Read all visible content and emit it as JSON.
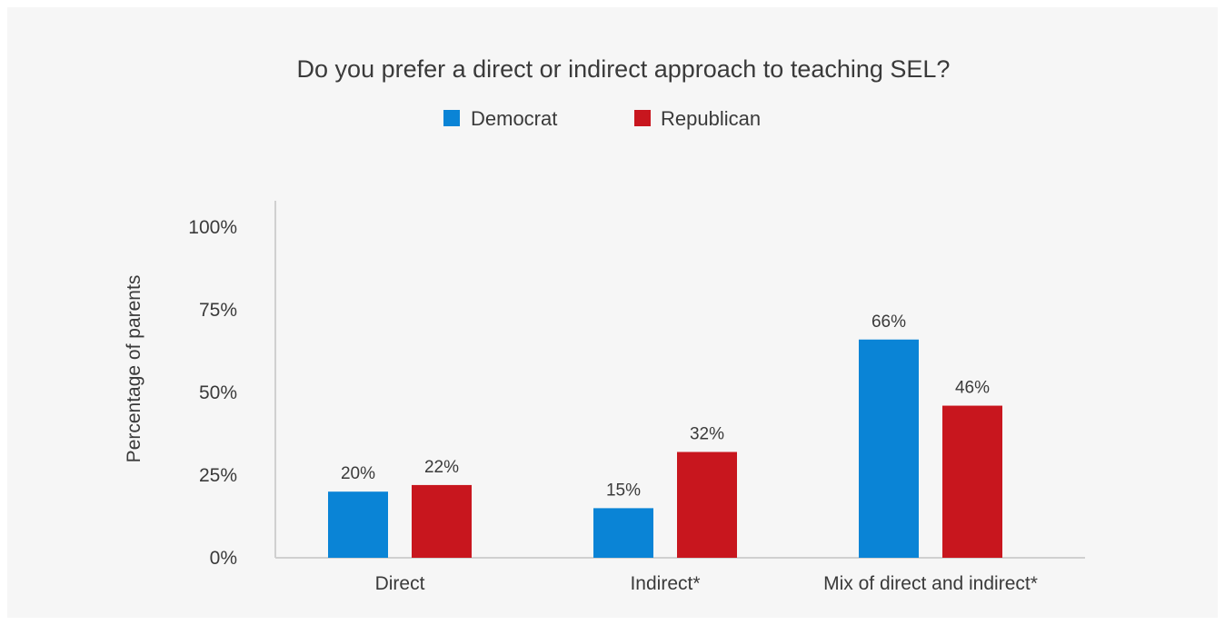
{
  "chart_data": {
    "type": "bar",
    "title": "Do you prefer a direct or indirect approach to teaching SEL?",
    "xlabel": "",
    "ylabel": "Percentage of parents",
    "categories": [
      "Direct",
      "Indirect*",
      "Mix of direct and indirect*"
    ],
    "series": [
      {
        "name": "Democrat",
        "color": "#0a84d6",
        "values": [
          20,
          15,
          66
        ],
        "labels": [
          "20%",
          "15%",
          "66%"
        ]
      },
      {
        "name": "Republican",
        "color": "#c8161e",
        "values": [
          22,
          32,
          46
        ],
        "labels": [
          "22%",
          "32%",
          "46%"
        ]
      }
    ],
    "ylim": [
      0,
      100
    ],
    "yticks": [
      0,
      25,
      50,
      75,
      100
    ],
    "ytick_labels": [
      "0%",
      "25%",
      "50%",
      "75%",
      "100%"
    ],
    "legend_position": "top-center",
    "grid": false
  }
}
